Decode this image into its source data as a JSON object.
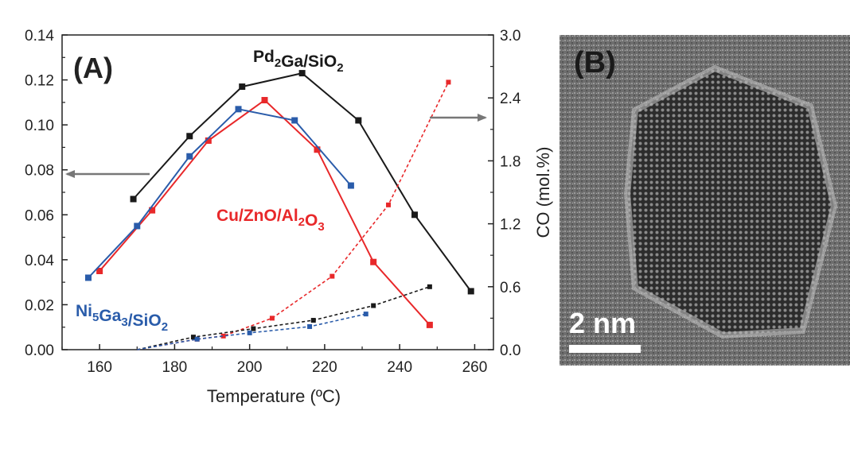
{
  "chart_data": {
    "type": "line",
    "panel_label": "(A)",
    "xlabel": "Temperature (ºC)",
    "ylabel_left": "",
    "ylabel_right": "CO (mol.%)",
    "xlim": [
      150,
      265
    ],
    "ylim_left": [
      0,
      0.14
    ],
    "ylim_right": [
      0,
      3.0
    ],
    "x_ticks": [
      "160",
      "180",
      "200",
      "220",
      "240",
      "260"
    ],
    "y_ticks_left": [
      "0.00",
      "0.02",
      "0.04",
      "0.06",
      "0.08",
      "0.10",
      "0.12",
      "0.14"
    ],
    "y_ticks_right": [
      "0.0",
      "0.6",
      "1.2",
      "1.8",
      "2.4",
      "3.0"
    ],
    "grid": false,
    "series": [
      {
        "name": "Pd2Ga/SiO2",
        "label_main": "Pd",
        "label_sub": "2",
        "label_main2": "Ga/SiO",
        "label_sub2": "2",
        "color": "#1a1a1a",
        "axis": "left",
        "style": "solid",
        "x": [
          169,
          184,
          198,
          214,
          229,
          244,
          259
        ],
        "y": [
          0.067,
          0.095,
          0.117,
          0.123,
          0.102,
          0.06,
          0.026
        ]
      },
      {
        "name": "Cu/ZnO/Al2O3",
        "label_main": "Cu/ZnO/Al",
        "label_sub": "2",
        "label_main2": "O",
        "label_sub2": "3",
        "color": "#e8282a",
        "axis": "left",
        "style": "solid",
        "x": [
          160,
          174,
          189,
          204,
          218,
          233,
          248
        ],
        "y": [
          0.035,
          0.062,
          0.093,
          0.111,
          0.089,
          0.039,
          0.011
        ]
      },
      {
        "name": "Ni5Ga3/SiO2",
        "label_main": "Ni",
        "label_sub": "5",
        "label_main2": "Ga",
        "label_sub2": "3",
        "label_main3": "/SiO",
        "label_sub3": "2",
        "color": "#2a5caa",
        "axis": "left",
        "style": "solid",
        "x": [
          157,
          170,
          184,
          197,
          212,
          227
        ],
        "y": [
          0.032,
          0.055,
          0.086,
          0.107,
          0.102,
          0.073
        ]
      },
      {
        "name": "Cu/ZnO/Al2O3 CO",
        "color": "#e8282a",
        "axis": "right",
        "style": "dashed",
        "x": [
          170,
          186,
          193,
          206,
          222,
          237,
          253
        ],
        "y": [
          0.0,
          0.1,
          0.13,
          0.3,
          0.7,
          1.38,
          2.55
        ]
      },
      {
        "name": "Pd2Ga/SiO2 CO",
        "color": "#1a1a1a",
        "axis": "right",
        "style": "dashed",
        "x": [
          170,
          185,
          201,
          217,
          233,
          248
        ],
        "y": [
          0.0,
          0.12,
          0.2,
          0.28,
          0.42,
          0.6
        ]
      },
      {
        "name": "Ni5Ga3/SiO2 CO",
        "color": "#2a5caa",
        "axis": "right",
        "style": "dashed",
        "x": [
          170,
          186,
          200,
          216,
          231
        ],
        "y": [
          0.0,
          0.1,
          0.16,
          0.22,
          0.34
        ]
      }
    ]
  },
  "image_panel": {
    "label": "(B)",
    "scale_text": "2 nm"
  }
}
